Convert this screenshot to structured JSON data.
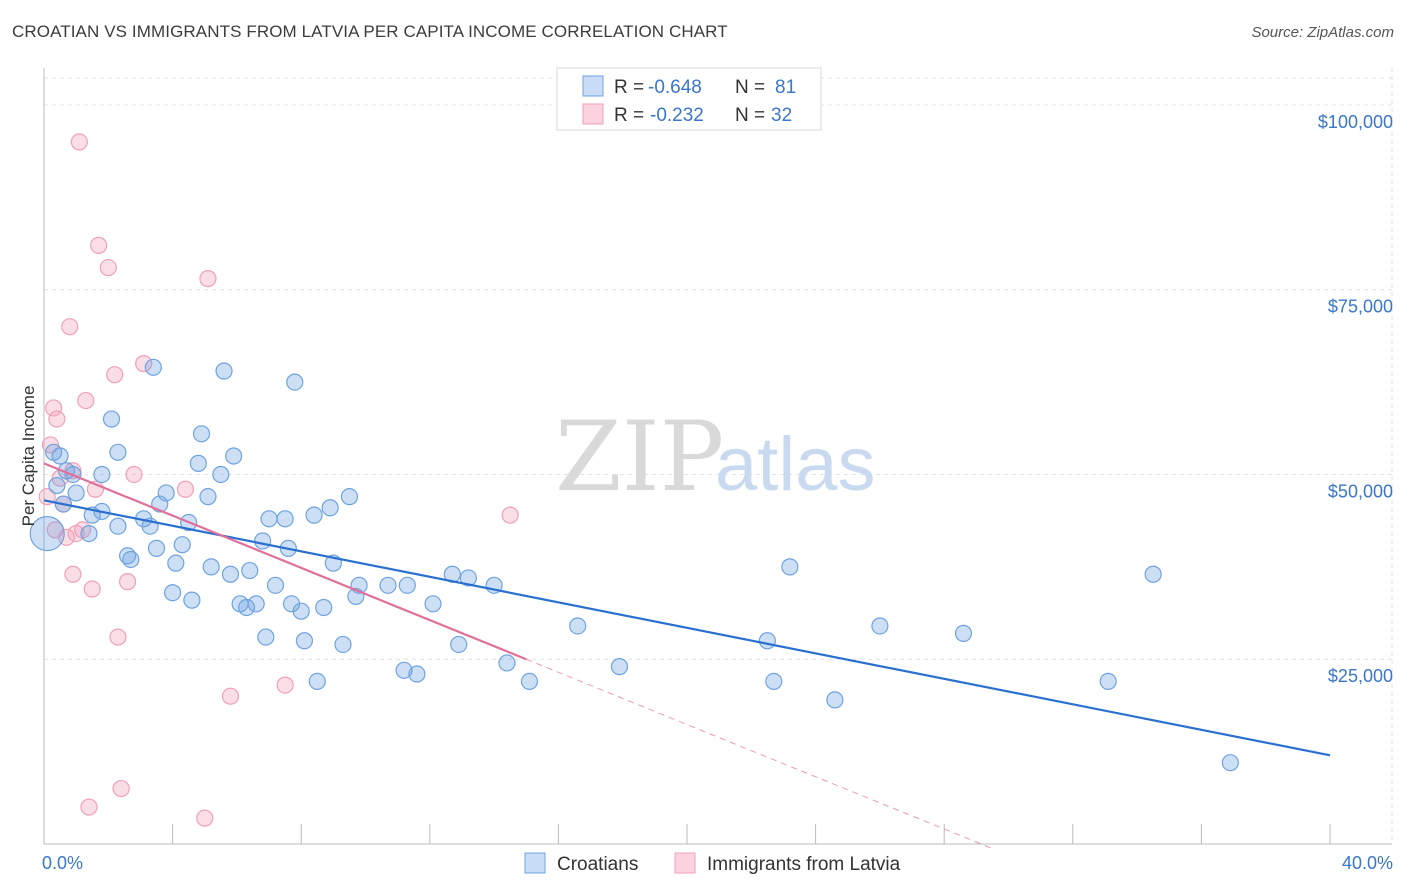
{
  "title": "CROATIAN VS IMMIGRANTS FROM LATVIA PER CAPITA INCOME CORRELATION CHART",
  "source": "Source: ZipAtlas.com",
  "watermark": {
    "zip": "ZIP",
    "atlas": "atlas"
  },
  "colors": {
    "croatians": "#6fa3e0",
    "croatians_line": "#2a70d0",
    "latvia": "#f0a0b8",
    "latvia_line": "#e0709a",
    "tick_blue": "#3a77c9"
  },
  "legend_top": [
    {
      "r_label": "R = ",
      "r_value": "-0.648",
      "n_label": "N = ",
      "n_value": "81"
    },
    {
      "r_label": "R = ",
      "r_value": "-0.232",
      "n_label": "N = ",
      "n_value": "32"
    }
  ],
  "legend_bottom": [
    "Croatians",
    "Immigrants from Latvia"
  ],
  "chart_data": {
    "type": "scatter",
    "title": "CROATIAN VS IMMIGRANTS FROM LATVIA PER CAPITA INCOME CORRELATION CHART",
    "xlabel": "",
    "ylabel": "Per Capita Income",
    "xlim": [
      0,
      40
    ],
    "ylim": [
      0,
      105000
    ],
    "x_tick_labels": [
      "0.0%",
      "40.0%"
    ],
    "y_ticks": [
      25000,
      50000,
      75000,
      100000
    ],
    "y_tick_labels": [
      "$25,000",
      "$50,000",
      "$75,000",
      "$100,000"
    ],
    "grid": true,
    "legend_position": "top-center",
    "series": [
      {
        "name": "Croatians",
        "points": [
          [
            0.1,
            42000
          ],
          [
            0.3,
            53000
          ],
          [
            0.5,
            52500
          ],
          [
            0.7,
            50500
          ],
          [
            0.9,
            50000
          ],
          [
            0.4,
            48500
          ],
          [
            0.6,
            46000
          ],
          [
            1.0,
            47500
          ],
          [
            1.5,
            44500
          ],
          [
            1.8,
            45000
          ],
          [
            1.4,
            42000
          ],
          [
            2.3,
            43000
          ],
          [
            1.8,
            50000
          ],
          [
            2.1,
            57500
          ],
          [
            2.3,
            53000
          ],
          [
            2.6,
            39000
          ],
          [
            2.7,
            38500
          ],
          [
            3.1,
            44000
          ],
          [
            3.3,
            43000
          ],
          [
            3.4,
            64500
          ],
          [
            3.5,
            40000
          ],
          [
            3.6,
            46000
          ],
          [
            3.8,
            47500
          ],
          [
            4.0,
            34000
          ],
          [
            4.1,
            38000
          ],
          [
            4.3,
            40500
          ],
          [
            4.5,
            43500
          ],
          [
            4.6,
            33000
          ],
          [
            4.8,
            51500
          ],
          [
            4.9,
            55500
          ],
          [
            5.1,
            47000
          ],
          [
            5.2,
            37500
          ],
          [
            5.5,
            50000
          ],
          [
            5.6,
            64000
          ],
          [
            5.8,
            36500
          ],
          [
            5.9,
            52500
          ],
          [
            6.1,
            32500
          ],
          [
            6.3,
            32000
          ],
          [
            6.4,
            37000
          ],
          [
            6.6,
            32500
          ],
          [
            6.8,
            41000
          ],
          [
            6.9,
            28000
          ],
          [
            7.0,
            44000
          ],
          [
            7.2,
            35000
          ],
          [
            7.5,
            44000
          ],
          [
            7.6,
            40000
          ],
          [
            7.7,
            32500
          ],
          [
            7.8,
            62500
          ],
          [
            8.0,
            31500
          ],
          [
            8.1,
            27500
          ],
          [
            8.4,
            44500
          ],
          [
            8.5,
            22000
          ],
          [
            8.7,
            32000
          ],
          [
            8.9,
            45500
          ],
          [
            9.0,
            38000
          ],
          [
            9.3,
            27000
          ],
          [
            9.5,
            47000
          ],
          [
            9.7,
            33500
          ],
          [
            9.8,
            35000
          ],
          [
            10.7,
            35000
          ],
          [
            11.2,
            23500
          ],
          [
            11.3,
            35000
          ],
          [
            11.6,
            23000
          ],
          [
            12.1,
            32500
          ],
          [
            12.7,
            36500
          ],
          [
            12.9,
            27000
          ],
          [
            13.2,
            36000
          ],
          [
            14.0,
            35000
          ],
          [
            14.4,
            24500
          ],
          [
            15.1,
            22000
          ],
          [
            16.6,
            29500
          ],
          [
            17.9,
            24000
          ],
          [
            22.5,
            27500
          ],
          [
            22.7,
            22000
          ],
          [
            23.2,
            37500
          ],
          [
            24.6,
            19500
          ],
          [
            26.0,
            29500
          ],
          [
            28.6,
            28500
          ],
          [
            33.1,
            22000
          ],
          [
            34.5,
            36500
          ],
          [
            36.9,
            11000
          ]
        ],
        "trend": {
          "x_start": 0,
          "y_start": 46500,
          "x_end": 40,
          "y_end": 12000
        }
      },
      {
        "name": "Immigrants from Latvia",
        "points": [
          [
            0.1,
            47000
          ],
          [
            0.2,
            54000
          ],
          [
            0.3,
            59000
          ],
          [
            0.4,
            57500
          ],
          [
            0.5,
            49500
          ],
          [
            0.6,
            46000
          ],
          [
            0.7,
            41500
          ],
          [
            0.8,
            70000
          ],
          [
            0.9,
            36500
          ],
          [
            1.0,
            42000
          ],
          [
            1.1,
            95000
          ],
          [
            1.2,
            42500
          ],
          [
            1.3,
            60000
          ],
          [
            1.4,
            5000
          ],
          [
            1.5,
            34500
          ],
          [
            1.6,
            48000
          ],
          [
            1.7,
            81000
          ],
          [
            2.0,
            78000
          ],
          [
            2.2,
            63500
          ],
          [
            2.3,
            28000
          ],
          [
            2.4,
            7500
          ],
          [
            2.6,
            35500
          ],
          [
            3.1,
            65000
          ],
          [
            4.4,
            48000
          ],
          [
            5.0,
            3500
          ],
          [
            5.1,
            76500
          ],
          [
            5.8,
            20000
          ],
          [
            7.5,
            21500
          ],
          [
            14.5,
            44500
          ],
          [
            2.8,
            50000
          ],
          [
            0.35,
            42500
          ],
          [
            0.9,
            50500
          ]
        ],
        "trend": {
          "x_start": 0,
          "y_start": 51500,
          "x_end": 15.0,
          "y_end": 25000,
          "dashed_to_x": 29.5
        }
      }
    ]
  }
}
